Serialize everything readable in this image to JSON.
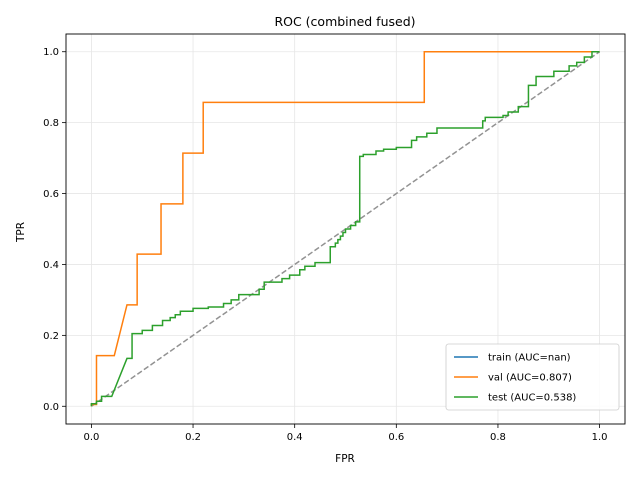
{
  "chart_data": {
    "type": "line",
    "title": "ROC (combined fused)",
    "xlabel": "FPR",
    "ylabel": "TPR",
    "xlim": [
      -0.05,
      1.05
    ],
    "ylim": [
      -0.05,
      1.05
    ],
    "xticks": [
      0.0,
      0.2,
      0.4,
      0.6,
      0.8,
      1.0
    ],
    "yticks": [
      0.0,
      0.2,
      0.4,
      0.6,
      0.8,
      1.0
    ],
    "xtick_labels": [
      "0.0",
      "0.2",
      "0.4",
      "0.6",
      "0.8",
      "1.0"
    ],
    "ytick_labels": [
      "0.0",
      "0.2",
      "0.4",
      "0.6",
      "0.8",
      "1.0"
    ],
    "grid": true,
    "legend_position": "lower-right",
    "series": [
      {
        "name": "train (AUC=nan)",
        "color": "#1f77b4",
        "x": [],
        "y": []
      },
      {
        "name": "val (AUC=0.807)",
        "color": "#ff7f0e",
        "x": [
          0.0,
          0.0,
          0.01,
          0.01,
          0.045,
          0.07,
          0.09,
          0.09,
          0.137,
          0.137,
          0.18,
          0.18,
          0.22,
          0.22,
          0.655,
          0.655,
          1.0
        ],
        "y": [
          0.0,
          0.005,
          0.005,
          0.143,
          0.143,
          0.286,
          0.286,
          0.429,
          0.429,
          0.571,
          0.571,
          0.714,
          0.714,
          0.857,
          0.857,
          1.0,
          1.0
        ]
      },
      {
        "name": "test (AUC=0.538)",
        "color": "#2ca02c",
        "x": [
          0.0,
          0.0,
          0.01,
          0.01,
          0.02,
          0.02,
          0.04,
          0.07,
          0.08,
          0.08,
          0.1,
          0.1,
          0.12,
          0.12,
          0.14,
          0.14,
          0.155,
          0.155,
          0.165,
          0.165,
          0.175,
          0.175,
          0.2,
          0.2,
          0.23,
          0.23,
          0.26,
          0.26,
          0.275,
          0.275,
          0.29,
          0.29,
          0.33,
          0.33,
          0.34,
          0.34,
          0.375,
          0.375,
          0.39,
          0.39,
          0.41,
          0.41,
          0.42,
          0.42,
          0.44,
          0.44,
          0.47,
          0.47,
          0.48,
          0.48,
          0.485,
          0.485,
          0.49,
          0.49,
          0.495,
          0.495,
          0.5,
          0.5,
          0.51,
          0.51,
          0.52,
          0.52,
          0.528,
          0.528,
          0.535,
          0.535,
          0.56,
          0.56,
          0.575,
          0.575,
          0.6,
          0.6,
          0.63,
          0.63,
          0.64,
          0.64,
          0.66,
          0.66,
          0.68,
          0.68,
          0.77,
          0.77,
          0.775,
          0.775,
          0.81,
          0.81,
          0.82,
          0.82,
          0.84,
          0.84,
          0.86,
          0.86,
          0.875,
          0.875,
          0.91,
          0.91,
          0.94,
          0.94,
          0.955,
          0.955,
          0.97,
          0.97,
          0.985,
          0.985,
          1.0
        ],
        "y": [
          0.0,
          0.007,
          0.007,
          0.014,
          0.014,
          0.028,
          0.028,
          0.135,
          0.135,
          0.205,
          0.205,
          0.214,
          0.214,
          0.228,
          0.228,
          0.242,
          0.242,
          0.25,
          0.25,
          0.258,
          0.258,
          0.268,
          0.268,
          0.276,
          0.276,
          0.28,
          0.28,
          0.29,
          0.29,
          0.3,
          0.3,
          0.315,
          0.315,
          0.33,
          0.33,
          0.35,
          0.35,
          0.36,
          0.36,
          0.37,
          0.37,
          0.385,
          0.385,
          0.395,
          0.395,
          0.405,
          0.405,
          0.45,
          0.45,
          0.46,
          0.46,
          0.47,
          0.47,
          0.48,
          0.48,
          0.49,
          0.49,
          0.5,
          0.5,
          0.51,
          0.51,
          0.52,
          0.52,
          0.705,
          0.705,
          0.71,
          0.71,
          0.72,
          0.72,
          0.725,
          0.725,
          0.73,
          0.73,
          0.75,
          0.75,
          0.76,
          0.76,
          0.77,
          0.77,
          0.785,
          0.785,
          0.805,
          0.805,
          0.815,
          0.815,
          0.82,
          0.82,
          0.83,
          0.83,
          0.845,
          0.845,
          0.905,
          0.905,
          0.93,
          0.93,
          0.945,
          0.945,
          0.96,
          0.96,
          0.97,
          0.97,
          0.985,
          0.985,
          1.0,
          1.0
        ]
      },
      {
        "name": "",
        "color": "#929292",
        "dashed": true,
        "x": [
          0.0,
          1.0
        ],
        "y": [
          0.0,
          1.0
        ]
      }
    ]
  }
}
